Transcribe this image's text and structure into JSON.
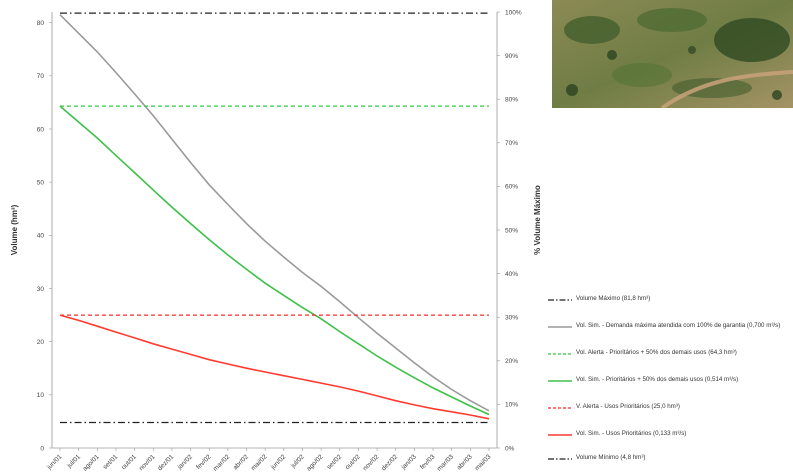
{
  "chart_data": {
    "type": "line",
    "title": "",
    "xlabel": "",
    "ylabel": "Volume (hm³)",
    "y2label": "% Volume Máximo",
    "ylim": [
      0,
      82
    ],
    "y2lim": [
      0,
      100
    ],
    "yticks": [
      "0",
      "10",
      "20",
      "30",
      "40",
      "50",
      "60",
      "70",
      "80"
    ],
    "y2ticks": [
      "0%",
      "10%",
      "20%",
      "30%",
      "40%",
      "50%",
      "60%",
      "70%",
      "80%",
      "90%",
      "100%"
    ],
    "categories": [
      "jun/01",
      "jul/01",
      "ago/01",
      "set/01",
      "out/01",
      "nov/01",
      "dez/01",
      "jan/02",
      "fev/02",
      "mar/02",
      "abr/02",
      "mai/02",
      "jun/02",
      "jul/02",
      "ago/02",
      "set/02",
      "out/02",
      "nov/02",
      "dez/02",
      "jan/03",
      "fev/03",
      "mar/03",
      "abr/03",
      "mai/03"
    ],
    "grid": false,
    "legend_position": "right",
    "series": [
      {
        "name": "Volume Máximo (81,8 hm³)",
        "style": "dashdot",
        "color": "#222222",
        "values": [
          81.8,
          81.8,
          81.8,
          81.8,
          81.8,
          81.8,
          81.8,
          81.8,
          81.8,
          81.8,
          81.8,
          81.8,
          81.8,
          81.8,
          81.8,
          81.8,
          81.8,
          81.8,
          81.8,
          81.8,
          81.8,
          81.8,
          81.8,
          81.8
        ]
      },
      {
        "name": "Vol. Sim. - Demanda máxima atendida com 100% de garantia (0,700 m³/s)",
        "style": "solid",
        "color": "#9a9a9a",
        "values": [
          81.5,
          78.0,
          74.5,
          70.6,
          66.6,
          62.5,
          58.1,
          53.7,
          49.5,
          45.8,
          42.2,
          38.9,
          35.9,
          33.0,
          30.4,
          27.5,
          24.5,
          21.6,
          18.8,
          16.0,
          13.4,
          11.0,
          8.9,
          7.0
        ]
      },
      {
        "name": "Vol. Alerta - Prioritários + 50% dos demais usos (64,3 hm³)",
        "style": "dashed",
        "color": "#2ecc40",
        "values": [
          64.3,
          64.3,
          64.3,
          64.3,
          64.3,
          64.3,
          64.3,
          64.3,
          64.3,
          64.3,
          64.3,
          64.3,
          64.3,
          64.3,
          64.3,
          64.3,
          64.3,
          64.3,
          64.3,
          64.3,
          64.3,
          64.3,
          64.3,
          64.3
        ]
      },
      {
        "name": "Vol. Sim. - Prioritários + 50% dos demais usos (0,514 m³/s)",
        "style": "solid",
        "color": "#3ec04a",
        "values": [
          64.3,
          61.3,
          58.3,
          55.0,
          51.8,
          48.5,
          45.3,
          42.2,
          39.2,
          36.3,
          33.6,
          31.0,
          28.7,
          26.4,
          24.3,
          21.9,
          19.6,
          17.3,
          15.2,
          13.2,
          11.3,
          9.6,
          7.9,
          6.3
        ]
      },
      {
        "name": "V. Alerta - Usos Prioritários (25,0 hm³)",
        "style": "dashed",
        "color": "#ff2a2a",
        "values": [
          25.0,
          25.0,
          25.0,
          25.0,
          25.0,
          25.0,
          25.0,
          25.0,
          25.0,
          25.0,
          25.0,
          25.0,
          25.0,
          25.0,
          25.0,
          25.0,
          25.0,
          25.0,
          25.0,
          25.0,
          25.0,
          25.0,
          25.0,
          25.0
        ]
      },
      {
        "name": "Vol. Sim. - Usos Prioritários (0,133 m³/s)",
        "style": "solid",
        "color": "#ff3b30",
        "values": [
          25.0,
          24.0,
          22.9,
          21.8,
          20.7,
          19.6,
          18.6,
          17.6,
          16.6,
          15.8,
          15.0,
          14.3,
          13.6,
          12.9,
          12.2,
          11.5,
          10.7,
          9.8,
          8.9,
          8.1,
          7.4,
          6.8,
          6.2,
          5.5
        ]
      },
      {
        "name": "Volume Mínimo (4,8 hm³)",
        "style": "dashdot",
        "color": "#222222",
        "values": [
          4.8,
          4.8,
          4.8,
          4.8,
          4.8,
          4.8,
          4.8,
          4.8,
          4.8,
          4.8,
          4.8,
          4.8,
          4.8,
          4.8,
          4.8,
          4.8,
          4.8,
          4.8,
          4.8,
          4.8,
          4.8,
          4.8,
          4.8,
          4.8
        ]
      }
    ]
  },
  "legend": {
    "items": [
      {
        "label": "Volume Máximo (81,8 hm³)"
      },
      {
        "label": "Vol. Sim. - Demanda máxima atendida com 100% de garantia (0,700 m³/s)"
      },
      {
        "label": "Vol. Alerta - Prioritários + 50% dos demais usos (64,3 hm³)"
      },
      {
        "label": "Vol. Sim. - Prioritários + 50% dos demais usos (0,514 m³/s)"
      },
      {
        "label": "V. Alerta - Usos Prioritários (25,0 hm³)"
      },
      {
        "label": "Vol. Sim. - Usos Prioritários (0,133 m³/s)"
      },
      {
        "label": "Volume Mínimo (4,8 hm³)"
      }
    ]
  },
  "photo": {
    "subject": "aerial view of reservoir terrain",
    "colors": [
      "#7a8a4a",
      "#3d5a2a",
      "#b59a6a",
      "#c7a889"
    ]
  }
}
